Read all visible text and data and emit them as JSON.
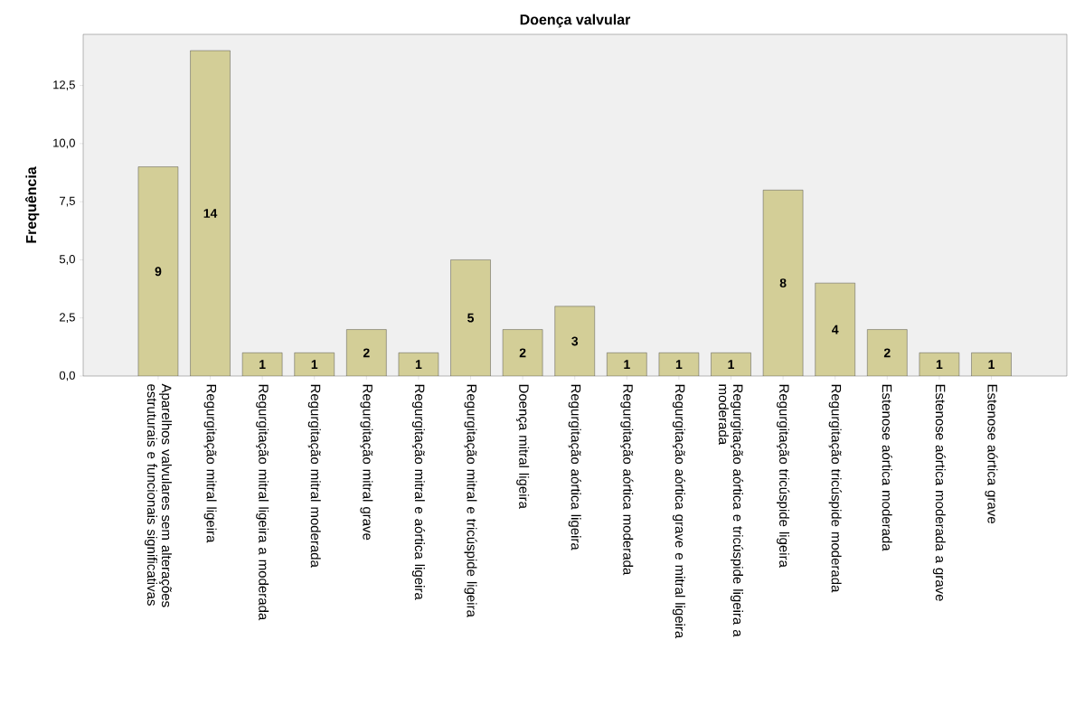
{
  "chart_data": {
    "type": "bar",
    "title": "Doença valvular",
    "ylabel": "Frequência",
    "categories": [
      "Aparelhos valvulares sem alterações estruturais e funcionais significativas",
      "Regurgitação mitral ligeira",
      "Regurgitação mitral ligeira a moderada",
      "Regurgitação mitral moderada",
      "Regurgitação mitral grave",
      "Regurgitação mitral e aórtica ligeira",
      "Regurgitação mitral e tricúspide ligeira",
      "Doença mitral ligeira",
      "Regurgitação aórtica ligeira",
      "Regurgitação aórtica moderada",
      "Regurgitação aórtica grave e mitral ligeira",
      "Regurgitação aórtica e tricúspide ligeira a moderada",
      "Regurgitação tricúspide ligeira",
      "Regurgitação tricúspide moderada",
      "Estenose aórtica moderada",
      "Estenose aórtica moderada a grave",
      "Estenose aórtica grave"
    ],
    "values": [
      9,
      14,
      1,
      1,
      2,
      1,
      5,
      2,
      3,
      1,
      1,
      1,
      8,
      4,
      2,
      1,
      1
    ],
    "color": "#d3ce97",
    "ylim": [
      0,
      14.7
    ],
    "yticks": [
      {
        "value": 0,
        "label": "0,0"
      },
      {
        "value": 2.5,
        "label": "2,5"
      },
      {
        "value": 5,
        "label": "5,0"
      },
      {
        "value": 7.5,
        "label": "7,5"
      },
      {
        "value": 10,
        "label": "10,0"
      },
      {
        "value": 12.5,
        "label": "12,5"
      }
    ],
    "grid": false,
    "data_labels": true
  }
}
